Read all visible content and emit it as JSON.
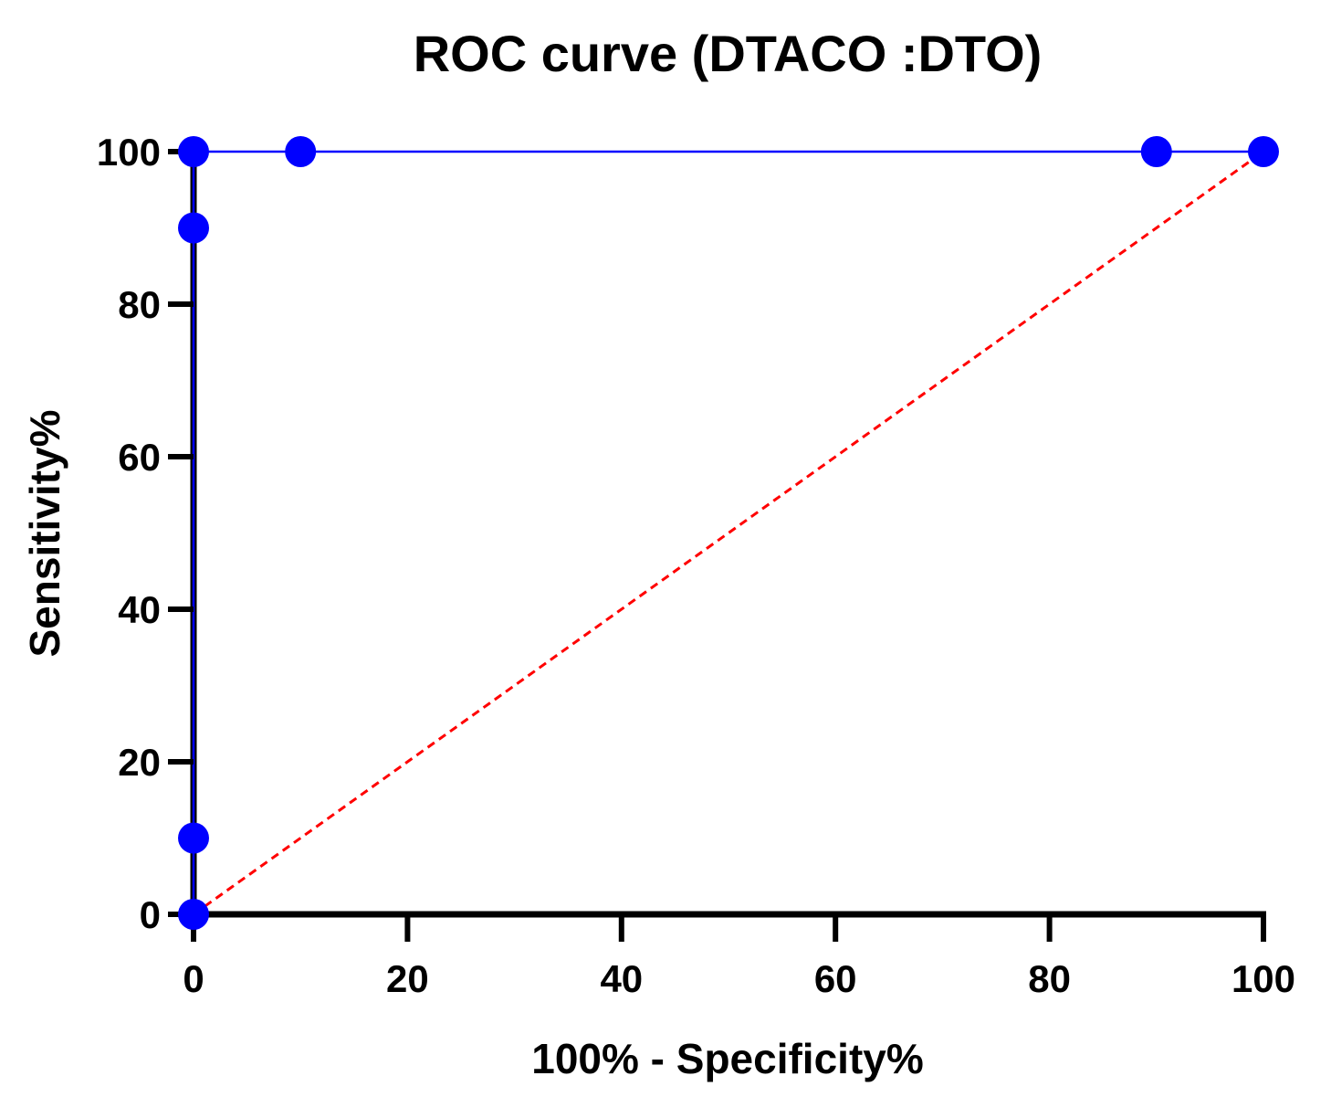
{
  "chart_data": {
    "type": "line",
    "title": "ROC curve (DTACO :DTO)",
    "xlabel": "100% - Specificity%",
    "ylabel": "Sensitivity%",
    "xlim": [
      0,
      100
    ],
    "ylim": [
      0,
      100
    ],
    "x_ticks": [
      "0",
      "20",
      "40",
      "60",
      "80",
      "100"
    ],
    "y_ticks": [
      "0",
      "20",
      "40",
      "60",
      "80",
      "100"
    ],
    "grid": false,
    "series": [
      {
        "name": "ROC curve",
        "style": "line-markers",
        "color": "#0000ff",
        "points": [
          {
            "x": 0,
            "y": 0
          },
          {
            "x": 0,
            "y": 10
          },
          {
            "x": 0,
            "y": 90
          },
          {
            "x": 0,
            "y": 100
          },
          {
            "x": 10,
            "y": 100
          },
          {
            "x": 90,
            "y": 100
          },
          {
            "x": 100,
            "y": 100
          }
        ]
      },
      {
        "name": "Reference line",
        "style": "dashed",
        "color": "#ff0000",
        "points": [
          {
            "x": 0,
            "y": 0
          },
          {
            "x": 100,
            "y": 100
          }
        ]
      }
    ]
  }
}
